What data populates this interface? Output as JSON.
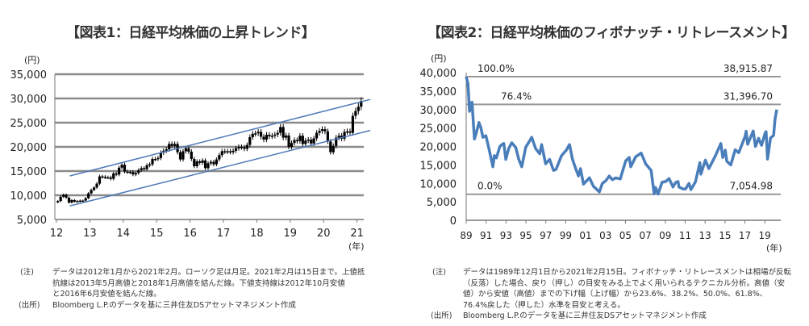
{
  "chart_data": [
    {
      "type": "candlestick",
      "title": "【図表1：日経平均株価の上昇トレンド】",
      "ylabel": "(円)",
      "xlabel": "(年)",
      "ylim": [
        5000,
        35000
      ],
      "yticks": [
        5000,
        10000,
        15000,
        20000,
        25000,
        30000,
        35000
      ],
      "ytick_labels": [
        "5,000",
        "10,000",
        "15,000",
        "20,000",
        "25,000",
        "30,000",
        "35,000"
      ],
      "xlim": [
        2012,
        2021.4
      ],
      "xticks": [
        2012,
        2013,
        2014,
        2015,
        2016,
        2017,
        2018,
        2019,
        2020,
        2021
      ],
      "xtick_labels": [
        "12",
        "13",
        "14",
        "15",
        "16",
        "17",
        "18",
        "19",
        "20",
        "21"
      ],
      "grid": true,
      "start_year": 2012,
      "monthly_close": [
        8800,
        9700,
        10100,
        9500,
        8500,
        9000,
        8700,
        8800,
        8900,
        8900,
        9400,
        10400,
        11100,
        11600,
        12400,
        13900,
        13800,
        13700,
        13700,
        13400,
        14500,
        14300,
        15700,
        16300,
        14900,
        14800,
        14800,
        14300,
        14600,
        15200,
        15600,
        15400,
        16200,
        16400,
        17500,
        17500,
        17700,
        18800,
        19200,
        19500,
        20600,
        20200,
        20600,
        18900,
        17400,
        19100,
        19700,
        19000,
        17500,
        16000,
        17000,
        16700,
        17200,
        15600,
        16600,
        16900,
        16400,
        17400,
        18300,
        19100,
        19000,
        19100,
        18900,
        19200,
        19700,
        20000,
        19900,
        19600,
        20400,
        22000,
        22700,
        22800,
        23100,
        22100,
        21500,
        22500,
        22200,
        22300,
        22550,
        22900,
        24100,
        21900,
        22350,
        20000,
        20800,
        21400,
        21200,
        22300,
        20600,
        21300,
        21500,
        20700,
        21750,
        22900,
        23300,
        23650,
        23200,
        21100,
        18900,
        20200,
        21900,
        22300,
        21700,
        23100,
        23200,
        22900,
        26400,
        27400,
        28300,
        29500
      ],
      "trendlines": [
        {
          "name": "上値抵抗線",
          "from": [
            2012.4,
            14000
          ],
          "to": [
            2021.4,
            29800
          ],
          "color": "#4f7ab8"
        },
        {
          "name": "下値支持線",
          "from": [
            2012.4,
            7800
          ],
          "to": [
            2021.4,
            23400
          ],
          "color": "#4f7ab8"
        }
      ],
      "candle_color": "#000000"
    },
    {
      "type": "line",
      "title": "【図表2：日経平均株価のフィボナッチ・リトレースメント】",
      "ylabel": "(円)",
      "xlabel": "(年)",
      "ylim": [
        0,
        40000
      ],
      "yticks": [
        0,
        5000,
        10000,
        15000,
        20000,
        25000,
        30000,
        35000,
        40000
      ],
      "ytick_labels": [
        "0",
        "5,000",
        "10,000",
        "15,000",
        "20,000",
        "25,000",
        "30,000",
        "35,000",
        "40,000"
      ],
      "xlim": [
        1989.92,
        2021.12
      ],
      "xticks": [
        1989.92,
        1991.92,
        1993.92,
        1995.92,
        1997.92,
        1999.92,
        2001.92,
        2003.92,
        2005.92,
        2007.92,
        2009.92,
        2011.92,
        2013.92,
        2015.92,
        2017.92,
        2019.92
      ],
      "xtick_labels": [
        "89",
        "91",
        "93",
        "95",
        "97",
        "99",
        "01",
        "03",
        "05",
        "07",
        "09",
        "11",
        "13",
        "15",
        "17",
        "19"
      ],
      "grid": false,
      "series_color": "#4a7ebb",
      "x": [
        1989.92,
        1990.1,
        1990.25,
        1990.5,
        1990.75,
        1990.95,
        1991.2,
        1991.4,
        1991.6,
        1991.9,
        1992.2,
        1992.4,
        1992.6,
        1992.75,
        1992.95,
        1993.3,
        1993.5,
        1993.7,
        1993.9,
        1994.2,
        1994.5,
        1994.9,
        1995.2,
        1995.5,
        1995.9,
        1996.3,
        1996.5,
        1996.9,
        1997.3,
        1997.5,
        1997.9,
        1998.3,
        1998.7,
        1998.95,
        1999.5,
        1999.95,
        2000.3,
        2000.6,
        2000.95,
        2001.2,
        2001.4,
        2001.7,
        2001.95,
        2002.3,
        2002.7,
        2002.95,
        2003.3,
        2003.6,
        2003.95,
        2004.3,
        2004.6,
        2004.95,
        2005.4,
        2005.95,
        2006.3,
        2006.45,
        2006.95,
        2007.5,
        2007.95,
        2008.5,
        2008.8,
        2008.95,
        2009.2,
        2009.6,
        2009.95,
        2010.3,
        2010.7,
        2010.95,
        2011.2,
        2011.3,
        2011.7,
        2011.95,
        2012.3,
        2012.5,
        2012.95,
        2013.4,
        2013.5,
        2013.95,
        2014.3,
        2014.95,
        2015.5,
        2015.7,
        2015.95,
        2016.1,
        2016.5,
        2016.95,
        2017.3,
        2017.95,
        2018.05,
        2018.2,
        2018.75,
        2018.98,
        2019.3,
        2019.6,
        2019.95,
        2020.05,
        2020.2,
        2020.5,
        2020.8,
        2020.95,
        2021.12
      ],
      "values": [
        38900,
        37000,
        29500,
        32000,
        22000,
        23800,
        26500,
        25000,
        22500,
        22900,
        19500,
        17000,
        14500,
        17500,
        16900,
        20000,
        20500,
        20800,
        16500,
        19500,
        21000,
        19700,
        16500,
        14500,
        19800,
        21500,
        22500,
        19400,
        18000,
        20500,
        15300,
        16500,
        13500,
        13800,
        17500,
        18900,
        20500,
        16500,
        13800,
        12000,
        14000,
        9800,
        10500,
        11500,
        9200,
        8600,
        7700,
        10000,
        10700,
        12000,
        11000,
        11500,
        11200,
        16100,
        17000,
        14500,
        17200,
        18200,
        15300,
        13500,
        7200,
        8900,
        7100,
        10300,
        10500,
        11300,
        9000,
        10200,
        10500,
        9000,
        8500,
        8450,
        10000,
        8300,
        10400,
        15600,
        12500,
        16300,
        14000,
        17450,
        20800,
        17000,
        19000,
        16000,
        15000,
        19100,
        18300,
        22800,
        24100,
        20600,
        24200,
        20000,
        22200,
        20300,
        23650,
        24000,
        16600,
        22300,
        23000,
        27400,
        30000
      ],
      "fib_levels": [
        {
          "pct_label": "100.0%",
          "value": 38915.87,
          "value_label": "38,915.87"
        },
        {
          "pct_label": "76.4%",
          "value": 31396.7,
          "value_label": "31,396.70"
        },
        {
          "pct_label": "0.0%",
          "value": 7054.98,
          "value_label": "7,054.98"
        }
      ]
    }
  ],
  "notes": {
    "left": {
      "note_label": "(注)",
      "note_lines": [
        "データは2012年1月から2021年2月。ローソク足は月足。2021年2月は15日まで。上値抵",
        "抗線は2013年5月高値と2018年1月高値を結んだ線。下値支持線は2012年10月安値",
        "と2016年6月安値を結んだ線。"
      ],
      "source_label": "(出所)",
      "source_text": "Bloomberg L.P.のデータを基に三井住友DSアセットマネジメント作成"
    },
    "right": {
      "note_label": "(注)",
      "note_lines": [
        "データは1989年12月1日から2021年2月15日。フィボナッチ・リトレースメントは相場が反転",
        "（反落）した場合、戻り（押し）の目安をみる上でよく用いられるテクニカル分析。高値（安",
        "値）から安値（高値）までの下げ幅（上げ幅）から23.6%、38.2%、50.0%、61.8%、",
        "76.4%戻した（押した）水準を目安と考える。"
      ],
      "source_label": "(出所)",
      "source_text": "Bloomberg L.P.のデータを基に三井住友DSアセットマネジメント作成"
    }
  }
}
